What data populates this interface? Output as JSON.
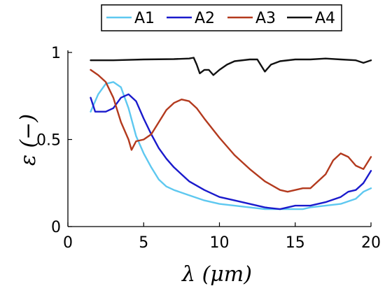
{
  "chart_data": {
    "type": "line",
    "title": "",
    "xlabel": "λ (μm)",
    "ylabel": "ε (−)",
    "xlim": [
      0,
      20
    ],
    "ylim": [
      0,
      1
    ],
    "x_ticks": [
      0,
      5,
      10,
      15,
      20
    ],
    "x_tick_labels": [
      "0",
      "5",
      "10",
      "15",
      "20"
    ],
    "y_ticks": [
      0,
      0.5,
      1
    ],
    "y_tick_labels": [
      "0",
      "0.5",
      "1"
    ],
    "grid": false,
    "legend_placement": "top",
    "series": [
      {
        "name": "A1",
        "color": "#5ec8f0",
        "points": [
          [
            1.5,
            0.66
          ],
          [
            2.0,
            0.76
          ],
          [
            2.5,
            0.82
          ],
          [
            3.0,
            0.83
          ],
          [
            3.5,
            0.8
          ],
          [
            4.0,
            0.68
          ],
          [
            4.5,
            0.52
          ],
          [
            5.0,
            0.42
          ],
          [
            5.5,
            0.34
          ],
          [
            6.0,
            0.27
          ],
          [
            6.5,
            0.23
          ],
          [
            7.0,
            0.21
          ],
          [
            8.0,
            0.18
          ],
          [
            9.0,
            0.15
          ],
          [
            10.0,
            0.13
          ],
          [
            11.0,
            0.12
          ],
          [
            12.0,
            0.11
          ],
          [
            13.0,
            0.1
          ],
          [
            14.0,
            0.1
          ],
          [
            15.0,
            0.1
          ],
          [
            15.5,
            0.1
          ],
          [
            16.0,
            0.11
          ],
          [
            17.0,
            0.12
          ],
          [
            18.0,
            0.13
          ],
          [
            19.0,
            0.16
          ],
          [
            19.5,
            0.2
          ],
          [
            20.0,
            0.22
          ]
        ]
      },
      {
        "name": "A2",
        "color": "#1a1acc",
        "points": [
          [
            1.5,
            0.74
          ],
          [
            1.8,
            0.66
          ],
          [
            2.5,
            0.66
          ],
          [
            3.0,
            0.68
          ],
          [
            3.5,
            0.74
          ],
          [
            4.0,
            0.76
          ],
          [
            4.5,
            0.72
          ],
          [
            5.0,
            0.62
          ],
          [
            5.5,
            0.53
          ],
          [
            6.0,
            0.45
          ],
          [
            6.5,
            0.39
          ],
          [
            7.0,
            0.34
          ],
          [
            8.0,
            0.26
          ],
          [
            9.0,
            0.21
          ],
          [
            10.0,
            0.17
          ],
          [
            11.0,
            0.15
          ],
          [
            12.0,
            0.13
          ],
          [
            13.0,
            0.11
          ],
          [
            14.0,
            0.1
          ],
          [
            14.5,
            0.11
          ],
          [
            15.0,
            0.12
          ],
          [
            15.5,
            0.12
          ],
          [
            16.0,
            0.12
          ],
          [
            17.0,
            0.14
          ],
          [
            18.0,
            0.17
          ],
          [
            18.5,
            0.2
          ],
          [
            19.0,
            0.21
          ],
          [
            19.5,
            0.25
          ],
          [
            20.0,
            0.32
          ]
        ]
      },
      {
        "name": "A3",
        "color": "#b33a1e",
        "points": [
          [
            1.5,
            0.9
          ],
          [
            2.0,
            0.87
          ],
          [
            2.5,
            0.83
          ],
          [
            3.0,
            0.74
          ],
          [
            3.5,
            0.6
          ],
          [
            4.0,
            0.5
          ],
          [
            4.2,
            0.44
          ],
          [
            4.5,
            0.49
          ],
          [
            5.0,
            0.5
          ],
          [
            5.5,
            0.53
          ],
          [
            6.0,
            0.6
          ],
          [
            6.5,
            0.67
          ],
          [
            7.0,
            0.71
          ],
          [
            7.5,
            0.73
          ],
          [
            8.0,
            0.72
          ],
          [
            8.5,
            0.68
          ],
          [
            9.0,
            0.62
          ],
          [
            10.0,
            0.51
          ],
          [
            11.0,
            0.41
          ],
          [
            12.0,
            0.33
          ],
          [
            13.0,
            0.26
          ],
          [
            14.0,
            0.21
          ],
          [
            14.5,
            0.2
          ],
          [
            15.0,
            0.21
          ],
          [
            15.5,
            0.22
          ],
          [
            16.0,
            0.22
          ],
          [
            17.0,
            0.3
          ],
          [
            17.5,
            0.38
          ],
          [
            18.0,
            0.42
          ],
          [
            18.5,
            0.4
          ],
          [
            19.0,
            0.35
          ],
          [
            19.5,
            0.33
          ],
          [
            20.0,
            0.4
          ]
        ]
      },
      {
        "name": "A4",
        "color": "#111111",
        "points": [
          [
            1.5,
            0.955
          ],
          [
            3.0,
            0.955
          ],
          [
            5.0,
            0.96
          ],
          [
            7.0,
            0.962
          ],
          [
            8.0,
            0.965
          ],
          [
            8.3,
            0.97
          ],
          [
            8.5,
            0.93
          ],
          [
            8.7,
            0.88
          ],
          [
            9.0,
            0.9
          ],
          [
            9.3,
            0.9
          ],
          [
            9.6,
            0.87
          ],
          [
            10.0,
            0.9
          ],
          [
            10.5,
            0.93
          ],
          [
            11.0,
            0.95
          ],
          [
            12.0,
            0.96
          ],
          [
            12.5,
            0.96
          ],
          [
            13.0,
            0.89
          ],
          [
            13.4,
            0.93
          ],
          [
            14.0,
            0.95
          ],
          [
            15.0,
            0.96
          ],
          [
            16.0,
            0.96
          ],
          [
            17.0,
            0.965
          ],
          [
            18.0,
            0.96
          ],
          [
            19.0,
            0.955
          ],
          [
            19.5,
            0.94
          ],
          [
            20.0,
            0.955
          ]
        ]
      }
    ]
  }
}
